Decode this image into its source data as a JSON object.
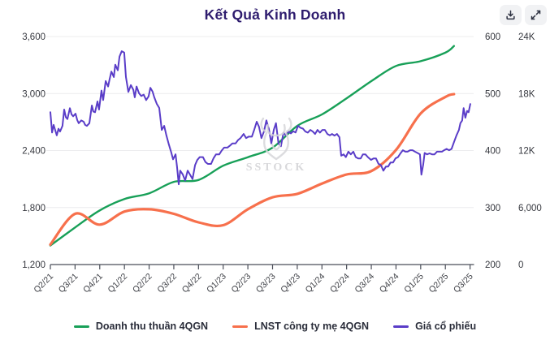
{
  "header": {
    "title": "Kết Quả Kinh Doanh",
    "buttons": [
      {
        "name": "download",
        "icon": "download-icon"
      },
      {
        "name": "expand",
        "icon": "expand-icon"
      }
    ],
    "title_color": "#2e1c6e",
    "button_bg": "#f1f2f4",
    "icon_color": "#2c3040"
  },
  "watermark": {
    "text": "SSTOCK",
    "icon": "bull-logo-icon",
    "color": "#d2d2d5"
  },
  "chart_data": {
    "type": "line",
    "title": "Kết Quả Kinh Doanh",
    "x_tick_labels": [
      "Q2/21",
      "Q3/21",
      "Q4/21",
      "Q1/22",
      "Q2/22",
      "Q3/22",
      "Q4/22",
      "Q1/23",
      "Q2/23",
      "Q3/23",
      "Q4/23",
      "Q1/24",
      "Q2/24",
      "Q3/24",
      "Q4/24",
      "Q1/25",
      "Q2/25",
      "Q3/25"
    ],
    "grid": true,
    "legend_position": "bottom",
    "axes": {
      "left": {
        "min": 1200,
        "max": 3600,
        "tick_labels": [
          "3,600",
          "3,000",
          "2,400",
          "1,800",
          "1,200"
        ]
      },
      "right_price": {
        "min": 200,
        "max": 600,
        "tick_labels": [
          "600",
          "500",
          "400",
          "300",
          "200"
        ]
      },
      "right_stock": {
        "min": 0,
        "max": 24000,
        "tick_labels": [
          "24K",
          "18K",
          "12K",
          "6,000",
          "0"
        ]
      }
    },
    "series": [
      {
        "name": "Doanh thu thuần 4QGN",
        "axis": "left",
        "color": "#18a058",
        "width": 2.4,
        "smooth": true,
        "x": [
          0,
          1,
          2,
          3,
          4,
          5,
          6,
          7,
          8,
          9,
          10,
          11,
          12,
          13,
          14,
          15,
          16,
          16.35
        ],
        "values": [
          1400,
          1590,
          1770,
          1890,
          1950,
          2070,
          2090,
          2240,
          2330,
          2430,
          2660,
          2780,
          2950,
          3130,
          3290,
          3340,
          3430,
          3500
        ]
      },
      {
        "name": "LNST công ty mẹ 4QGN",
        "axis": "right_price",
        "color": "#f7704c",
        "width": 3.2,
        "smooth": true,
        "x": [
          0,
          1,
          2,
          3,
          4,
          5,
          6,
          7,
          8,
          9,
          10,
          11,
          12,
          13,
          14,
          15,
          16,
          16.35
        ],
        "values": [
          235,
          289,
          270,
          293,
          297,
          289,
          274,
          269,
          297,
          318,
          324,
          342,
          358,
          364,
          401,
          465,
          494,
          499
        ]
      },
      {
        "name": "Giá cổ phiếu",
        "axis": "right_stock",
        "color": "#5a3dc8",
        "width": 2,
        "smooth": false,
        "points": [
          [
            0,
            16030
          ],
          [
            0.07,
            13900
          ],
          [
            0.13,
            14700
          ],
          [
            0.2,
            14100
          ],
          [
            0.26,
            13600
          ],
          [
            0.33,
            14300
          ],
          [
            0.39,
            14000
          ],
          [
            0.49,
            14600
          ],
          [
            0.56,
            16310
          ],
          [
            0.63,
            15500
          ],
          [
            0.69,
            15310
          ],
          [
            0.79,
            16460
          ],
          [
            0.86,
            15800
          ],
          [
            0.92,
            15600
          ],
          [
            1.02,
            15880
          ],
          [
            1.09,
            15200
          ],
          [
            1.15,
            14880
          ],
          [
            1.25,
            15170
          ],
          [
            1.35,
            15030
          ],
          [
            1.41,
            14700
          ],
          [
            1.48,
            14600
          ],
          [
            1.58,
            14880
          ],
          [
            1.68,
            16740
          ],
          [
            1.74,
            16100
          ],
          [
            1.81,
            16030
          ],
          [
            1.91,
            17170
          ],
          [
            1.97,
            16310
          ],
          [
            2.07,
            18310
          ],
          [
            2.14,
            17310
          ],
          [
            2.24,
            19310
          ],
          [
            2.34,
            18740
          ],
          [
            2.4,
            19500
          ],
          [
            2.47,
            20310
          ],
          [
            2.57,
            19740
          ],
          [
            2.63,
            21030
          ],
          [
            2.73,
            20450
          ],
          [
            2.8,
            21880
          ],
          [
            2.89,
            22450
          ],
          [
            2.99,
            22310
          ],
          [
            3.06,
            19740
          ],
          [
            3.16,
            18170
          ],
          [
            3.26,
            18880
          ],
          [
            3.36,
            18400
          ],
          [
            3.42,
            17600
          ],
          [
            3.49,
            18740
          ],
          [
            3.59,
            18030
          ],
          [
            3.68,
            17740
          ],
          [
            3.78,
            17880
          ],
          [
            3.88,
            17310
          ],
          [
            3.98,
            17700
          ],
          [
            4.05,
            18600
          ],
          [
            4.14,
            18200
          ],
          [
            4.21,
            17600
          ],
          [
            4.31,
            16910
          ],
          [
            4.41,
            16480
          ],
          [
            4.51,
            14170
          ],
          [
            4.61,
            14600
          ],
          [
            4.7,
            13600
          ],
          [
            4.8,
            12620
          ],
          [
            4.9,
            11770
          ],
          [
            4.97,
            11080
          ],
          [
            5.07,
            11600
          ],
          [
            5.13,
            10300
          ],
          [
            5.2,
            8450
          ],
          [
            5.26,
            9880
          ],
          [
            5.36,
            9500
          ],
          [
            5.46,
            8850
          ],
          [
            5.56,
            9880
          ],
          [
            5.66,
            9450
          ],
          [
            5.76,
            9000
          ],
          [
            5.86,
            10460
          ],
          [
            5.95,
            11000
          ],
          [
            6.05,
            11310
          ],
          [
            6.18,
            11310
          ],
          [
            6.28,
            10800
          ],
          [
            6.38,
            10590
          ],
          [
            6.51,
            10590
          ],
          [
            6.61,
            11200
          ],
          [
            6.71,
            11600
          ],
          [
            6.84,
            11600
          ],
          [
            6.94,
            12000
          ],
          [
            7.04,
            12310
          ],
          [
            7.17,
            12310
          ],
          [
            7.27,
            12500
          ],
          [
            7.37,
            12740
          ],
          [
            7.5,
            12740
          ],
          [
            7.6,
            13100
          ],
          [
            7.7,
            13310
          ],
          [
            7.83,
            13740
          ],
          [
            7.93,
            13310
          ],
          [
            8.03,
            13460
          ],
          [
            8.16,
            13460
          ],
          [
            8.26,
            14200
          ],
          [
            8.36,
            15030
          ],
          [
            8.45,
            14500
          ],
          [
            8.55,
            13310
          ],
          [
            8.65,
            14000
          ],
          [
            8.75,
            15170
          ],
          [
            8.85,
            14300
          ],
          [
            8.95,
            12740
          ],
          [
            9.05,
            14170
          ],
          [
            9.14,
            14880
          ],
          [
            9.24,
            12740
          ],
          [
            9.34,
            12450
          ],
          [
            9.44,
            13890
          ],
          [
            9.54,
            13600
          ],
          [
            9.64,
            14020
          ],
          [
            9.74,
            13800
          ],
          [
            9.84,
            14020
          ],
          [
            9.93,
            13900
          ],
          [
            10.03,
            14600
          ],
          [
            10.13,
            14400
          ],
          [
            10.23,
            14310
          ],
          [
            10.33,
            14000
          ],
          [
            10.43,
            13890
          ],
          [
            10.53,
            14170
          ],
          [
            10.63,
            14000
          ],
          [
            10.72,
            13740
          ],
          [
            10.82,
            14170
          ],
          [
            10.92,
            13890
          ],
          [
            11.02,
            14170
          ],
          [
            11.12,
            14170
          ],
          [
            11.22,
            13740
          ],
          [
            11.32,
            13600
          ],
          [
            11.41,
            13740
          ],
          [
            11.51,
            13570
          ],
          [
            11.61,
            13740
          ],
          [
            11.71,
            13400
          ],
          [
            11.78,
            11450
          ],
          [
            11.88,
            11600
          ],
          [
            11.97,
            11310
          ],
          [
            12.07,
            11880
          ],
          [
            12.17,
            11600
          ],
          [
            12.27,
            11880
          ],
          [
            12.37,
            11310
          ],
          [
            12.47,
            11170
          ],
          [
            12.57,
            11170
          ],
          [
            12.66,
            11600
          ],
          [
            12.76,
            11600
          ],
          [
            12.86,
            11310
          ],
          [
            12.99,
            11020
          ],
          [
            13.09,
            11170
          ],
          [
            13.19,
            11170
          ],
          [
            13.29,
            10600
          ],
          [
            13.39,
            10460
          ],
          [
            13.49,
            9880
          ],
          [
            13.59,
            10310
          ],
          [
            13.68,
            10310
          ],
          [
            13.78,
            10740
          ],
          [
            13.88,
            10740
          ],
          [
            13.98,
            11170
          ],
          [
            14.08,
            11310
          ],
          [
            14.18,
            11700
          ],
          [
            14.28,
            12030
          ],
          [
            14.38,
            11880
          ],
          [
            14.47,
            11880
          ],
          [
            14.57,
            12030
          ],
          [
            14.67,
            12030
          ],
          [
            14.77,
            11880
          ],
          [
            14.87,
            11740
          ],
          [
            14.97,
            11600
          ],
          [
            15.03,
            9460
          ],
          [
            15.1,
            10500
          ],
          [
            15.16,
            11740
          ],
          [
            15.26,
            11600
          ],
          [
            15.36,
            11700
          ],
          [
            15.46,
            11600
          ],
          [
            15.56,
            11600
          ],
          [
            15.66,
            11880
          ],
          [
            15.76,
            11880
          ],
          [
            15.86,
            11880
          ],
          [
            15.95,
            12030
          ],
          [
            16.05,
            12170
          ],
          [
            16.15,
            12030
          ],
          [
            16.25,
            12170
          ],
          [
            16.35,
            12880
          ],
          [
            16.45,
            13600
          ],
          [
            16.55,
            14170
          ],
          [
            16.61,
            14880
          ],
          [
            16.68,
            15170
          ],
          [
            16.74,
            16460
          ],
          [
            16.81,
            15450
          ],
          [
            16.88,
            16170
          ],
          [
            16.94,
            16030
          ],
          [
            17.01,
            16890
          ]
        ]
      }
    ],
    "style": {
      "gridline_color": "#ececee",
      "axis_line_color": "#4a4e59",
      "axis_label_color": "#35373e",
      "x_label_color": "#3f4147"
    }
  }
}
